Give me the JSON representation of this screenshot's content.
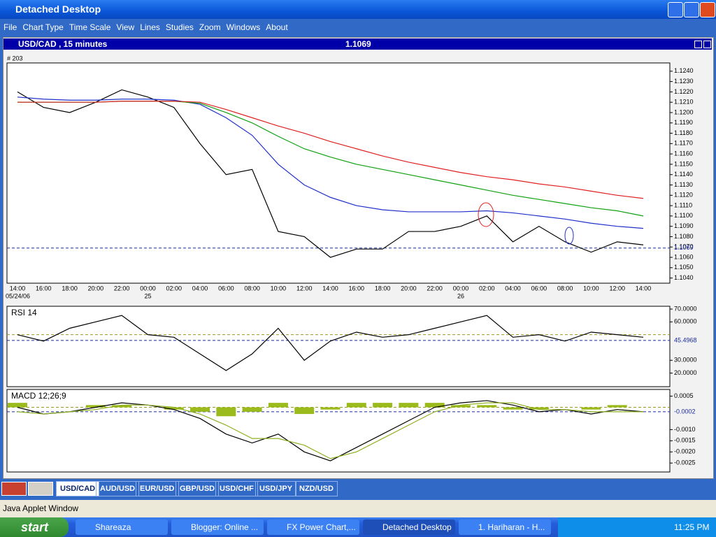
{
  "window": {
    "title": "Detached Desktop"
  },
  "menu": [
    "File",
    "Chart Type",
    "Time Scale",
    "View",
    "Lines",
    "Studies",
    "Zoom",
    "Windows",
    "About"
  ],
  "chart_window": {
    "title": "USD/CAD , 15 minutes"
  },
  "chart_data": [
    {
      "type": "line",
      "label": "# 203",
      "categories": [
        "14:00",
        "16:00",
        "18:00",
        "20:00",
        "22:00",
        "00:00",
        "02:00",
        "04:00",
        "06:00",
        "08:00",
        "10:00",
        "12:00",
        "14:00",
        "16:00",
        "18:00",
        "20:00",
        "22:00",
        "00:00",
        "02:00",
        "04:00",
        "06:00",
        "08:00",
        "10:00",
        "12:00",
        "14:00"
      ],
      "dates": [
        "05/24/06",
        null,
        null,
        null,
        null,
        "25",
        null,
        null,
        null,
        null,
        null,
        null,
        null,
        null,
        null,
        null,
        null,
        "26",
        null,
        null,
        null,
        null,
        null,
        null,
        null
      ],
      "series": [
        {
          "color": "#000000",
          "values": [
            1.122,
            1.1205,
            1.12,
            1.121,
            1.1222,
            1.1215,
            1.1205,
            1.117,
            1.114,
            1.1145,
            1.1085,
            1.108,
            1.106,
            1.1068,
            1.1068,
            1.1085,
            1.1085,
            1.109,
            1.11,
            1.1075,
            1.109,
            1.1075,
            1.1065,
            1.1075,
            1.1072
          ]
        },
        {
          "color": "#2030c8",
          "values": [
            1.1215,
            1.1213,
            1.1212,
            1.1212,
            1.1213,
            1.1213,
            1.1212,
            1.1208,
            1.1195,
            1.1178,
            1.115,
            1.113,
            1.1118,
            1.111,
            1.1106,
            1.1104,
            1.1104,
            1.1104,
            1.1105,
            1.1103,
            1.11,
            1.1097,
            1.1093,
            1.109,
            1.1088
          ]
        },
        {
          "color": "#10a010",
          "values": [
            1.121,
            1.121,
            1.121,
            1.121,
            1.1211,
            1.1211,
            1.1211,
            1.1209,
            1.12,
            1.119,
            1.1177,
            1.1165,
            1.1157,
            1.115,
            1.1145,
            1.114,
            1.1135,
            1.113,
            1.1125,
            1.112,
            1.1116,
            1.1112,
            1.1108,
            1.1105,
            1.11
          ]
        },
        {
          "color": "#e02020",
          "values": [
            1.121,
            1.121,
            1.121,
            1.121,
            1.1211,
            1.1211,
            1.1211,
            1.121,
            1.1203,
            1.1195,
            1.1187,
            1.118,
            1.1172,
            1.1165,
            1.1158,
            1.1152,
            1.1147,
            1.1142,
            1.1138,
            1.1135,
            1.1131,
            1.1128,
            1.1124,
            1.112,
            1.1117
          ]
        }
      ],
      "current": 1.1069,
      "ylim": [
        1.1035,
        1.1248
      ],
      "yticks": [
        {
          "value": 1.104,
          "label": "1.1040"
        },
        {
          "value": 1.105,
          "label": "1.1050"
        },
        {
          "value": 1.106,
          "label": "1.1060"
        },
        {
          "value": 1.107,
          "label": "1.1070"
        },
        {
          "value": 1.108,
          "label": "1.1080"
        },
        {
          "value": 1.109,
          "label": "1.1090"
        },
        {
          "value": 1.11,
          "label": "1.1100"
        },
        {
          "value": 1.111,
          "label": "1.1110"
        },
        {
          "value": 1.112,
          "label": "1.1120"
        },
        {
          "value": 1.113,
          "label": "1.1130"
        },
        {
          "value": 1.114,
          "label": "1.1140"
        },
        {
          "value": 1.115,
          "label": "1.1150"
        },
        {
          "value": 1.116,
          "label": "1.1160"
        },
        {
          "value": 1.117,
          "label": "1.1170"
        },
        {
          "value": 1.118,
          "label": "1.1180"
        },
        {
          "value": 1.119,
          "label": "1.1190"
        },
        {
          "value": 1.12,
          "label": "1.1200"
        },
        {
          "value": 1.121,
          "label": "1.1210"
        },
        {
          "value": 1.122,
          "label": "1.1220"
        },
        {
          "value": 1.123,
          "label": "1.1230"
        },
        {
          "value": 1.124,
          "label": "1.1240"
        }
      ]
    },
    {
      "type": "line",
      "label": "RSI 14",
      "series": [
        {
          "color": "#000000",
          "values": [
            50,
            45,
            55,
            60,
            65,
            50,
            48,
            35,
            22,
            35,
            55,
            30,
            45,
            52,
            48,
            50,
            55,
            60,
            65,
            48,
            50,
            45,
            52,
            50,
            48
          ]
        }
      ],
      "current": 45.4968,
      "level": 50,
      "ylim": [
        9.4,
        72.2
      ],
      "yticks": [
        {
          "value": 20,
          "label": "20.0000"
        },
        {
          "value": 30,
          "label": "30.0000"
        },
        {
          "value": 60,
          "label": "60.0000"
        },
        {
          "value": 70,
          "label": "70.0000"
        }
      ]
    },
    {
      "type": "line",
      "label": "MACD 12;26;9",
      "series": [
        {
          "color": "#000000",
          "values": [
            0.0,
            -0.0003,
            -0.0002,
            0.0,
            0.0002,
            0.0001,
            -0.0001,
            -0.0005,
            -0.0012,
            -0.0016,
            -0.0012,
            -0.002,
            -0.0024,
            -0.0018,
            -0.0012,
            -0.0006,
            0.0,
            0.0002,
            0.0003,
            0.0001,
            -0.0002,
            -0.0001,
            -0.0003,
            -0.0001,
            -0.0002
          ]
        },
        {
          "color": "#8fb020",
          "values": [
            -0.0002,
            -0.0003,
            -0.0002,
            -0.0001,
            0.0001,
            0.0001,
            0.0,
            -0.0003,
            -0.0008,
            -0.0014,
            -0.0014,
            -0.0017,
            -0.0023,
            -0.002,
            -0.0014,
            -0.0008,
            -0.0002,
            0.0001,
            0.0002,
            0.0002,
            -0.0001,
            -0.0001,
            -0.0002,
            -0.0002,
            -0.0002
          ]
        }
      ],
      "histogram": {
        "color": "#9bbb1c",
        "values": [
          0.0002,
          0.0,
          0.0,
          0.0001,
          0.0001,
          0.0,
          -0.0001,
          -0.0002,
          -0.0004,
          -0.0002,
          0.0002,
          -0.0003,
          -0.0001,
          0.0002,
          0.0002,
          0.0002,
          0.0002,
          0.0001,
          0.0001,
          -0.0001,
          -0.0001,
          0.0,
          -0.0001,
          0.0001,
          0.0
        ]
      },
      "current": -0.0002,
      "level": 0,
      "ylim": [
        -0.0029,
        0.0008
      ],
      "yticks": [
        {
          "value": -0.0025,
          "label": "-0.0025"
        },
        {
          "value": -0.002,
          "label": "-0.0020"
        },
        {
          "value": -0.0015,
          "label": "-0.0015"
        },
        {
          "value": -0.001,
          "label": "-0.0010"
        },
        0.0005
      ]
    }
  ],
  "tabs": [
    "USD/CAD",
    "AUD/USD",
    "EUR/USD",
    "GBP/USD",
    "USD/CHF",
    "USD/JPY",
    "NZD/USD"
  ],
  "status": "Java Applet Window",
  "taskbar": {
    "start": "start",
    "items": [
      "Shareaza",
      "Blogger: Online ...",
      "FX Power Chart,...",
      "Detached Desktop",
      "1. Hariharan - H..."
    ],
    "clock": "11:25 PM"
  }
}
